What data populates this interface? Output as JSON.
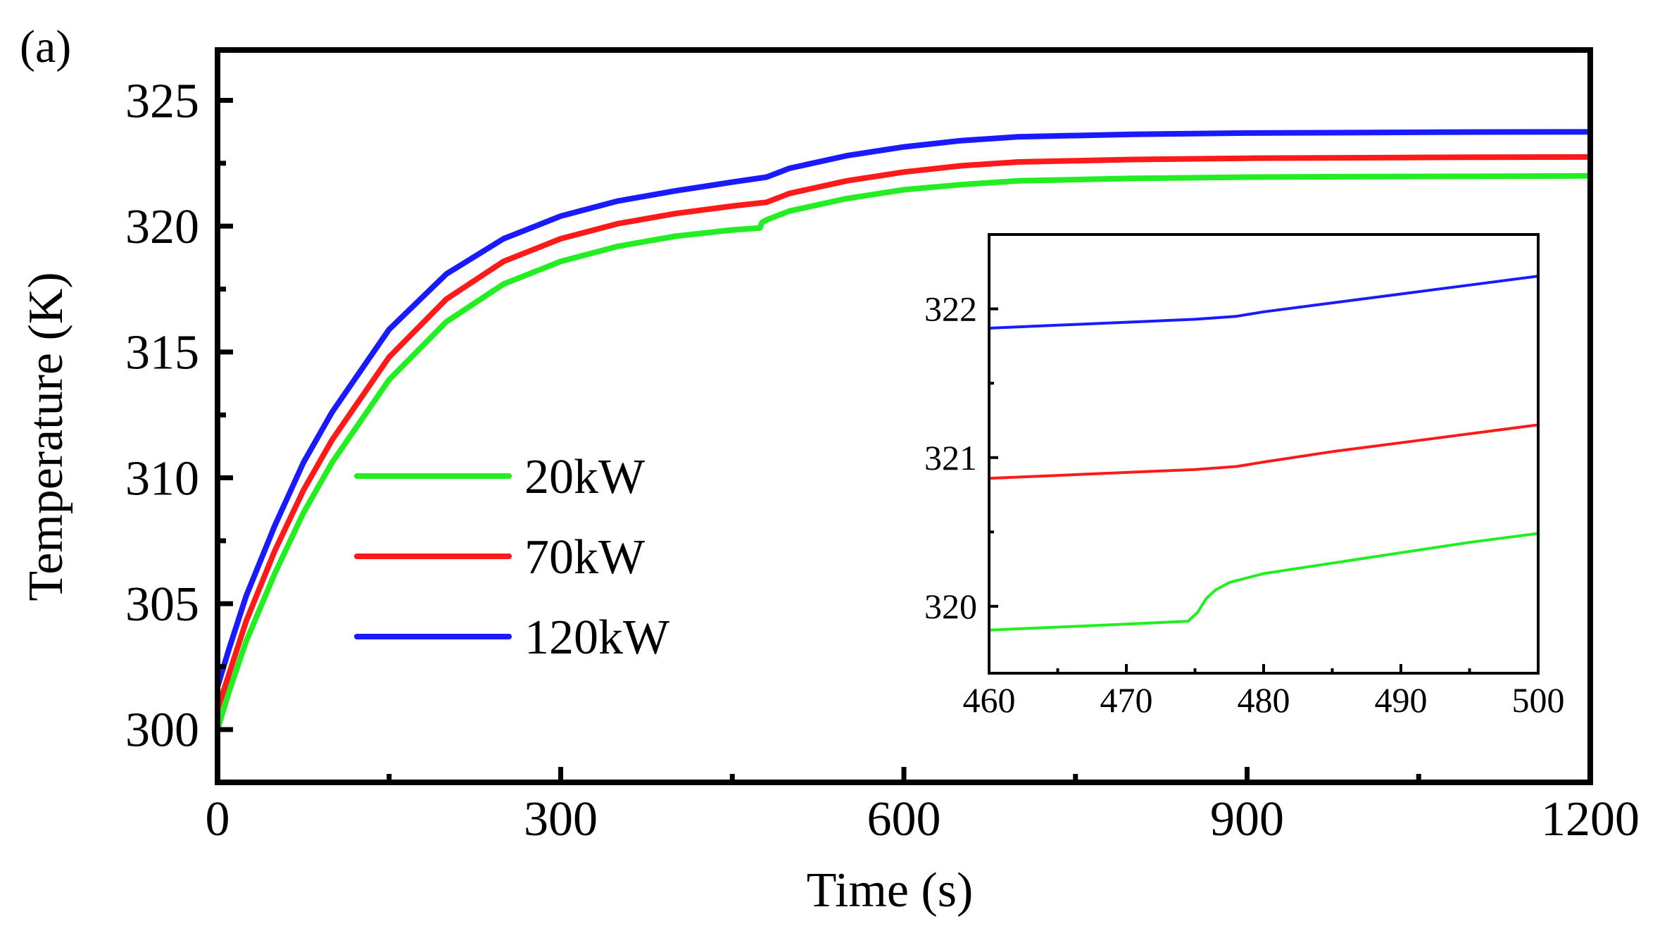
{
  "panel_label": "(a)",
  "chart_data": [
    {
      "type": "line",
      "title": "",
      "xlabel": "Time (s)",
      "ylabel": "Temperature (K)",
      "xlim": [
        0,
        1200
      ],
      "ylim": [
        297.9,
        327.0
      ],
      "xticks": [
        0,
        300,
        600,
        900,
        1200
      ],
      "yticks": [
        300,
        305,
        310,
        315,
        320,
        325
      ],
      "grid": false,
      "legend_position": "center-left",
      "series": [
        {
          "name": "20kW",
          "color": "#22ee22",
          "x": [
            0,
            10,
            25,
            50,
            75,
            100,
            150,
            200,
            250,
            300,
            350,
            400,
            450,
            474,
            476,
            480,
            500,
            550,
            600,
            650,
            700,
            800,
            900,
            1000,
            1100,
            1200
          ],
          "y": [
            300.0,
            301.5,
            303.5,
            306.2,
            308.6,
            310.6,
            313.9,
            316.2,
            317.7,
            318.6,
            319.2,
            319.6,
            319.85,
            319.93,
            320.15,
            320.25,
            320.6,
            321.1,
            321.45,
            321.65,
            321.8,
            321.9,
            321.95,
            321.97,
            321.98,
            322.0
          ]
        },
        {
          "name": "70kW",
          "color": "#ff1a1a",
          "x": [
            0,
            10,
            25,
            50,
            75,
            100,
            150,
            200,
            250,
            300,
            350,
            400,
            450,
            480,
            500,
            550,
            600,
            650,
            700,
            800,
            900,
            1000,
            1100,
            1200
          ],
          "y": [
            300.8,
            302.2,
            304.3,
            307.1,
            309.5,
            311.5,
            314.8,
            317.1,
            318.6,
            319.5,
            320.1,
            320.5,
            320.8,
            320.95,
            321.3,
            321.8,
            322.15,
            322.4,
            322.55,
            322.65,
            322.7,
            322.72,
            322.74,
            322.75
          ]
        },
        {
          "name": "120kW",
          "color": "#1a1aff",
          "x": [
            0,
            10,
            25,
            50,
            75,
            100,
            150,
            200,
            250,
            300,
            350,
            400,
            450,
            480,
            500,
            550,
            600,
            650,
            700,
            800,
            900,
            1000,
            1100,
            1200
          ],
          "y": [
            301.7,
            303.2,
            305.3,
            308.1,
            310.6,
            312.6,
            315.9,
            318.1,
            319.5,
            320.4,
            321.0,
            321.4,
            321.75,
            321.95,
            322.3,
            322.8,
            323.15,
            323.4,
            323.55,
            323.65,
            323.7,
            323.72,
            323.74,
            323.75
          ]
        }
      ]
    },
    {
      "type": "line",
      "title": "",
      "inset": true,
      "xlim": [
        460,
        500
      ],
      "ylim": [
        319.55,
        322.5
      ],
      "xticks": [
        460,
        470,
        480,
        490,
        500
      ],
      "yticks": [
        320,
        321,
        322
      ],
      "series": [
        {
          "name": "20kW",
          "color": "#22ee22",
          "x": [
            460,
            465,
            470,
            474.5,
            475.2,
            475.8,
            476.5,
            477.5,
            480,
            485,
            490,
            495,
            500
          ],
          "y": [
            319.84,
            319.86,
            319.88,
            319.9,
            319.96,
            320.05,
            320.11,
            320.16,
            320.22,
            320.29,
            320.36,
            320.43,
            320.49
          ]
        },
        {
          "name": "70kW",
          "color": "#ff1a1a",
          "x": [
            460,
            465,
            470,
            475,
            478,
            480,
            485,
            490,
            495,
            500
          ],
          "y": [
            320.86,
            320.88,
            320.9,
            320.92,
            320.94,
            320.97,
            321.04,
            321.1,
            321.16,
            321.22
          ]
        },
        {
          "name": "120kW",
          "color": "#1a1aff",
          "x": [
            460,
            465,
            470,
            475,
            478,
            480,
            485,
            490,
            495,
            500
          ],
          "y": [
            321.87,
            321.89,
            321.91,
            321.93,
            321.95,
            321.98,
            322.04,
            322.1,
            322.16,
            322.22
          ]
        }
      ]
    }
  ]
}
